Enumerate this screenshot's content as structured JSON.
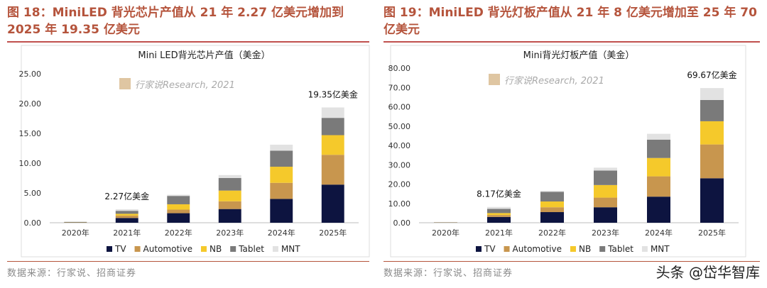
{
  "colors": {
    "TV": "#0d1440",
    "Automotive": "#c8964e",
    "NB": "#f5c92b",
    "Tablet": "#7a7a7a",
    "MNT": "#e2e2e2",
    "title": "#b5543c"
  },
  "figures": [
    {
      "title": "图 18：MiniLED 背光芯片产值从 21 年 2.27 亿美元增加到 2025 年 19.35 亿美元",
      "source": "数据来源：行家说、招商证券",
      "logo_text": "行家说Research, 2021"
    },
    {
      "title": "图 19：MiniLED 背光灯板产值从 21 年 8 亿美元增加至 25 年 70 亿美元",
      "source": "数据来源：行家说、招商证券",
      "logo_text": "行家说Research, 2021"
    }
  ],
  "watermark": "头条 @岱华智库",
  "chart_data": [
    {
      "type": "bar",
      "stacked": true,
      "title": "Mini LED背光芯片产值（美金）",
      "categories": [
        "2020年",
        "2021年",
        "2022年",
        "2023年",
        "2024年",
        "2025年"
      ],
      "ylim": [
        0,
        25
      ],
      "yticks": [
        "0.00",
        "5.00",
        "10.00",
        "15.00",
        "20.00",
        "25.00"
      ],
      "series": [
        {
          "name": "TV",
          "values": [
            0.05,
            0.8,
            1.6,
            2.3,
            4.0,
            6.4
          ]
        },
        {
          "name": "Automotive",
          "values": [
            0.03,
            0.4,
            0.6,
            1.3,
            2.7,
            5.0
          ]
        },
        {
          "name": "NB",
          "values": [
            0.03,
            0.3,
            0.9,
            1.8,
            2.7,
            3.3
          ]
        },
        {
          "name": "Tablet",
          "values": [
            0.03,
            0.5,
            1.4,
            2.1,
            2.7,
            2.9
          ]
        },
        {
          "name": "MNT",
          "values": [
            0.01,
            0.27,
            0.2,
            0.5,
            1.0,
            1.75
          ]
        }
      ],
      "annotations": [
        {
          "category": "2021年",
          "text": "2.27亿美金"
        },
        {
          "category": "2025年",
          "text": "19.35亿美金"
        }
      ],
      "grid": false,
      "legend": "bottom"
    },
    {
      "type": "bar",
      "stacked": true,
      "title": "Mini背光灯板产值（美金）",
      "categories": [
        "2020年",
        "2021年",
        "2022年",
        "2023年",
        "2024年",
        "2025年"
      ],
      "ylim": [
        0,
        80
      ],
      "yticks": [
        "0.00",
        "10.00",
        "20.00",
        "30.00",
        "40.00",
        "50.00",
        "60.00",
        "70.00",
        "80.00"
      ],
      "series": [
        {
          "name": "TV",
          "values": [
            0.1,
            3.0,
            5.5,
            8.0,
            13.5,
            23.0
          ]
        },
        {
          "name": "Automotive",
          "values": [
            0.05,
            1.0,
            2.5,
            5.0,
            10.5,
            17.5
          ]
        },
        {
          "name": "NB",
          "values": [
            0.05,
            1.0,
            3.0,
            6.5,
            9.5,
            12.0
          ]
        },
        {
          "name": "Tablet",
          "values": [
            0.05,
            2.2,
            5.0,
            7.5,
            9.5,
            11.0
          ]
        },
        {
          "name": "MNT",
          "values": [
            0.02,
            0.97,
            0.5,
            1.5,
            3.0,
            6.17
          ]
        }
      ],
      "annotations": [
        {
          "category": "2021年",
          "text": "8.17亿美金"
        },
        {
          "category": "2025年",
          "text": "69.67亿美金"
        }
      ],
      "grid": false,
      "legend": "bottom"
    }
  ]
}
